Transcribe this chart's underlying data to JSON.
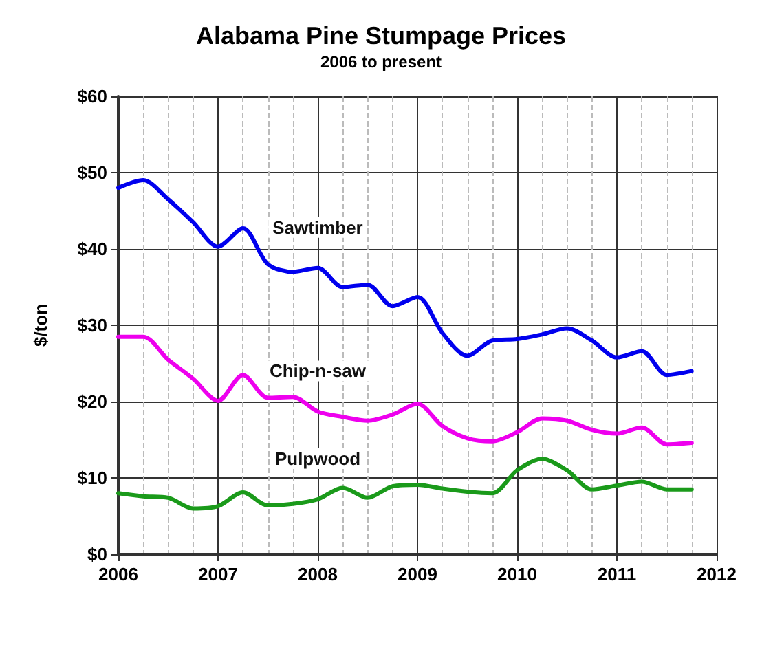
{
  "chart_data": {
    "type": "line",
    "title": "Alabama Pine Stumpage Prices",
    "subtitle": "2006 to present",
    "ylabel": "$/ton",
    "x": [
      2006,
      2006.25,
      2006.5,
      2006.75,
      2007,
      2007.25,
      2007.5,
      2007.75,
      2008,
      2008.25,
      2008.5,
      2008.75,
      2009,
      2009.25,
      2009.5,
      2009.75,
      2010,
      2010.25,
      2010.5,
      2010.75,
      2011,
      2011.25,
      2011.5,
      2011.75
    ],
    "series": [
      {
        "name": "Sawtimber",
        "color": "#0000ee",
        "values": [
          48,
          49,
          46.5,
          43.5,
          40.3,
          42.7,
          38,
          37,
          37.5,
          35,
          35.3,
          32.5,
          33.7,
          29,
          26,
          28,
          28.2,
          28.8,
          29.6,
          28,
          25.8,
          26.6,
          23.5,
          24
        ]
      },
      {
        "name": "Chip-n-saw",
        "color": "#ee00ee",
        "values": [
          28.5,
          28.5,
          25.5,
          23,
          20.1,
          23.5,
          20.5,
          20.6,
          18.7,
          18,
          17.5,
          18.3,
          19.7,
          16.8,
          15.2,
          14.8,
          16,
          17.8,
          17.5,
          16.3,
          15.8,
          16.6,
          14.4,
          14.6
        ]
      },
      {
        "name": "Pulpwood",
        "color": "#1a9a1a",
        "values": [
          8,
          7.6,
          7.4,
          6,
          6.3,
          8.1,
          6.4,
          6.6,
          7.2,
          8.7,
          7.4,
          8.9,
          9.1,
          8.6,
          8.2,
          8,
          11,
          12.5,
          11,
          8.5,
          9,
          9.5,
          8.5,
          8.5
        ]
      }
    ],
    "xlim": [
      2006,
      2012
    ],
    "xticks": [
      2006,
      2007,
      2008,
      2009,
      2010,
      2011,
      2012
    ],
    "ylim": [
      0,
      60
    ],
    "yticks": [
      {
        "value": 0,
        "label": "$0"
      },
      {
        "value": 10,
        "label": "$10"
      },
      {
        "value": 20,
        "label": "$20"
      },
      {
        "value": 30,
        "label": "$30"
      },
      {
        "value": 40,
        "label": "$40"
      },
      {
        "value": 50,
        "label": "$50"
      },
      {
        "value": 60,
        "label": "$60"
      }
    ],
    "grid": true,
    "legend": false,
    "line_style": "solid"
  }
}
